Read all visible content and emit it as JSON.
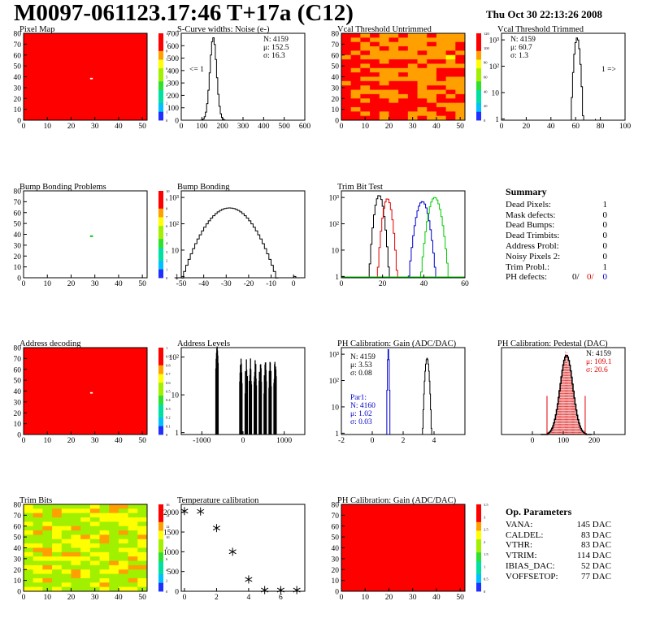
{
  "header": {
    "title": "M0097-061123.17:46 T+17a (C12)",
    "date": "Thu Oct 30 22:13:26 2008"
  },
  "colors": {
    "hist": "#000000",
    "red": "#e00000",
    "green": "#00cc00",
    "blue": "#0000cc",
    "map_bg": "#ff0000"
  },
  "chart_data": [
    {
      "type": "heatmap",
      "title": "Pixel Map",
      "xlim": [
        0,
        52
      ],
      "ylim": [
        0,
        80
      ],
      "xticks": [
        "0",
        "10",
        "20",
        "30",
        "40",
        "50"
      ],
      "yticks": [
        "0",
        "10",
        "20",
        "30",
        "40",
        "50",
        "60",
        "70",
        "80"
      ],
      "palette_labels": [
        "0",
        "1",
        "2",
        "3",
        "4",
        "5",
        "6",
        "7",
        "8",
        "9",
        "10"
      ],
      "fill": "uniform-max",
      "dead_pixels": [
        [
          28,
          38
        ]
      ]
    },
    {
      "type": "bar",
      "title": "S-Curve widths: Noise (e-)",
      "xlim": [
        0,
        600
      ],
      "ylim": [
        0,
        700
      ],
      "xticks": [
        "0",
        "100",
        "200",
        "300",
        "400",
        "500",
        "600"
      ],
      "yticks": [
        "0",
        "100",
        "200",
        "300",
        "400",
        "500",
        "600",
        "700"
      ],
      "stats": [
        "N: 4159",
        "μ: 152.5",
        "σ: 16.3"
      ],
      "annotation": "<= 1",
      "peak": {
        "mean": 152.5,
        "sigma": 16.3,
        "max": 665
      }
    },
    {
      "type": "heatmap",
      "title": "Vcal Threshold Untrimmed",
      "xlim": [
        0,
        52
      ],
      "ylim": [
        0,
        80
      ],
      "xticks": [
        "0",
        "10",
        "20",
        "30",
        "40",
        "50"
      ],
      "yticks": [
        "0",
        "10",
        "20",
        "30",
        "40",
        "50",
        "60",
        "70",
        "80"
      ],
      "palette_labels": [
        "0",
        "20",
        "40",
        "60",
        "80",
        "100",
        "120"
      ],
      "fill": "orange-gradient"
    },
    {
      "type": "bar",
      "title": "Vcal Threshold Trimmed",
      "scale": "log",
      "xlim": [
        0,
        100
      ],
      "xticks": [
        "0",
        "20",
        "40",
        "60",
        "80",
        "100"
      ],
      "yticks": [
        "1",
        "10",
        "10²",
        "10³"
      ],
      "stats": [
        "N: 4159",
        "μ: 60.7",
        "σ: 1.3"
      ],
      "annotation": "1 =>",
      "peak": {
        "mean": 60.7,
        "sigma": 1.3,
        "max": 1200
      }
    },
    {
      "type": "heatmap",
      "title": "Bump Bonding Problems",
      "xlim": [
        0,
        52
      ],
      "ylim": [
        0,
        80
      ],
      "xticks": [
        "0",
        "10",
        "20",
        "30",
        "40",
        "50"
      ],
      "yticks": [
        "0",
        "10",
        "20",
        "30",
        "40",
        "50",
        "60",
        "70",
        "80"
      ],
      "palette_labels": [
        "0",
        "1",
        "2",
        "3",
        "4",
        "5",
        "6",
        "7",
        "8",
        "9",
        "10"
      ],
      "fill": "white",
      "marks": [
        [
          28,
          38
        ]
      ]
    },
    {
      "type": "bar",
      "title": "Bump Bonding",
      "scale": "log",
      "xlim": [
        -50,
        5
      ],
      "xticks": [
        "-50",
        "-40",
        "-30",
        "-20",
        "-10",
        "0"
      ],
      "yticks": [
        "1",
        "10",
        "10²",
        "10³"
      ],
      "peak": {
        "mean": -29,
        "sigma": 6,
        "max": 400
      }
    },
    {
      "type": "line",
      "title": "Trim Bit Test",
      "scale": "log",
      "xlim": [
        0,
        60
      ],
      "xticks": [
        "0",
        "20",
        "40",
        "60"
      ],
      "yticks": [
        "1",
        "10",
        "10²",
        "10³"
      ],
      "series": [
        {
          "color": "black",
          "mean": 18,
          "sigma": 1.3,
          "max": 1200
        },
        {
          "color": "red",
          "mean": 22,
          "sigma": 1.3,
          "max": 900
        },
        {
          "color": "blue",
          "mean": 39,
          "sigma": 1.8,
          "max": 700
        },
        {
          "color": "green",
          "mean": 45,
          "sigma": 1.8,
          "max": 1000
        }
      ]
    },
    {
      "type": "table",
      "title": "Summary",
      "rows": [
        {
          "label": "Dead Pixels:",
          "value": "1"
        },
        {
          "label": "Mask defects:",
          "value": "0"
        },
        {
          "label": "Dead Bumps:",
          "value": "0"
        },
        {
          "label": "Dead Trimbits:",
          "value": "0"
        },
        {
          "label": "Address Probl:",
          "value": "0"
        },
        {
          "label": "Noisy Pixels 2:",
          "value": "0"
        },
        {
          "label": "Trim Probl.:",
          "value": "1"
        }
      ],
      "ph_defects": {
        "label": "PH defects:",
        "v1": "0/",
        "v2": "0/",
        "v3": "0"
      }
    },
    {
      "type": "heatmap",
      "title": "Address decoding",
      "xlim": [
        0,
        52
      ],
      "ylim": [
        0,
        80
      ],
      "xticks": [
        "0",
        "10",
        "20",
        "30",
        "40",
        "50"
      ],
      "yticks": [
        "0",
        "10",
        "20",
        "30",
        "40",
        "50",
        "60",
        "70",
        "80"
      ],
      "palette_labels": [
        "0",
        "0.1",
        "0.2",
        "0.3",
        "0.4",
        "0.5",
        "0.6",
        "0.7",
        "0.8",
        "0.9",
        "1"
      ],
      "fill": "uniform-max",
      "dead_pixels": [
        [
          28,
          38
        ]
      ]
    },
    {
      "type": "bar",
      "title": "Address Levels",
      "scale": "log",
      "xlim": [
        -1500,
        1500
      ],
      "xticks": [
        "-1000",
        "0",
        "1000"
      ],
      "yticks": [
        "1",
        "10",
        "10²"
      ],
      "levels": [
        -630,
        -50,
        80,
        180,
        300,
        420,
        540,
        660,
        780
      ]
    },
    {
      "type": "bar",
      "title": "PH Calibration: Gain (ADC/DAC)",
      "scale": "log",
      "xlim": [
        -2,
        6
      ],
      "xticks": [
        "-2",
        "0",
        "2",
        "4"
      ],
      "yticks": [
        "1",
        "10",
        "10²",
        "10³"
      ],
      "stats": [
        "N: 4159",
        "μ: 3.53",
        "σ: 0.08"
      ],
      "stats2": [
        "Par1:",
        "N: 4160",
        "μ: 1.02",
        "σ: 0.03"
      ],
      "series": [
        {
          "color": "black",
          "mean": 3.53,
          "sigma": 0.08,
          "max": 700
        },
        {
          "color": "blue",
          "mean": 1.02,
          "sigma": 0.03,
          "max": 1500
        }
      ]
    },
    {
      "type": "bar",
      "title": "PH Calibration: Pedestal (DAC)",
      "xlim": [
        -100,
        300
      ],
      "ylim": [
        0,
        90
      ],
      "xticks": [
        "0",
        "100",
        "200"
      ],
      "stats": [
        "N: 4159",
        "μ: 109.1",
        "σ: 20.6"
      ],
      "peak": {
        "mean": 109.1,
        "sigma": 20.6,
        "max": 82
      }
    },
    {
      "type": "heatmap",
      "title": "Trim Bits",
      "xlim": [
        0,
        52
      ],
      "ylim": [
        0,
        80
      ],
      "xticks": [
        "0",
        "10",
        "20",
        "30",
        "40",
        "50"
      ],
      "yticks": [
        "0",
        "10",
        "20",
        "30",
        "40",
        "50",
        "60",
        "70",
        "80"
      ],
      "palette_labels": [
        "0",
        "2",
        "4",
        "6",
        "8",
        "10",
        "12",
        "14",
        "16"
      ],
      "fill": "green-mix"
    },
    {
      "type": "scatter",
      "title": "Temperature calibration",
      "xlim": [
        -0.2,
        7.5
      ],
      "ylim": [
        0,
        2200
      ],
      "xticks": [
        "0",
        "2",
        "4",
        "6"
      ],
      "yticks": [
        "0",
        "500",
        "1000",
        "1500",
        "2000"
      ],
      "x": [
        0,
        1,
        2,
        3,
        4,
        5,
        6,
        7
      ],
      "y": [
        2030,
        2020,
        1600,
        1000,
        300,
        30,
        30,
        30
      ]
    },
    {
      "type": "heatmap",
      "title": "PH Calibration: Gain (ADC/DAC)",
      "xlim": [
        0,
        52
      ],
      "ylim": [
        0,
        80
      ],
      "xticks": [
        "0",
        "10",
        "20",
        "30",
        "40",
        "50"
      ],
      "yticks": [
        "0",
        "10",
        "20",
        "30",
        "40",
        "50",
        "60",
        "70",
        "80"
      ],
      "palette_labels": [
        "0",
        "0.5",
        "1",
        "1.5",
        "2",
        "2.5",
        "3",
        "3.5"
      ],
      "fill": "red-stripes"
    },
    {
      "type": "table",
      "title": "Op. Parameters",
      "rows": [
        {
          "label": "VANA:",
          "value": "145 DAC"
        },
        {
          "label": "CALDEL:",
          "value": "83 DAC"
        },
        {
          "label": "VTHR:",
          "value": "83 DAC"
        },
        {
          "label": "VTRIM:",
          "value": "114 DAC"
        },
        {
          "label": "IBIAS_DAC:",
          "value": "52 DAC"
        },
        {
          "label": "VOFFSETOP:",
          "value": "77 DAC"
        }
      ]
    }
  ]
}
